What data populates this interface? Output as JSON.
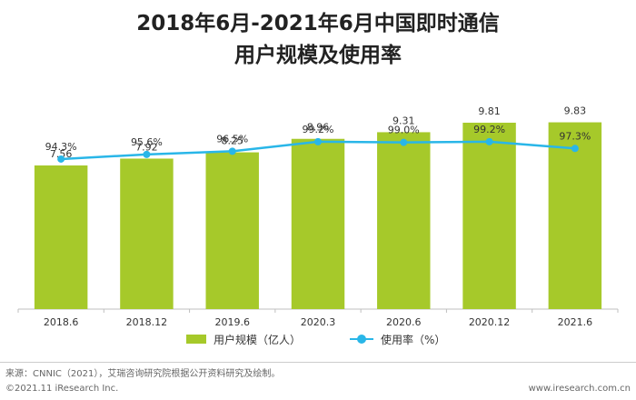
{
  "title_line1": "2018年6月-2021年6月中国即时通信",
  "title_line2": "用户规模及使用率",
  "chart_data": {
    "type": "bar",
    "categories": [
      "2018.6",
      "2018.12",
      "2019.6",
      "2020.3",
      "2020.6",
      "2020.12",
      "2021.6"
    ],
    "series": [
      {
        "name": "用户规模（亿人）",
        "type": "bar",
        "values": [
          7.56,
          7.92,
          8.25,
          8.96,
          9.31,
          9.81,
          9.83
        ],
        "labels": [
          "7.56",
          "7.92",
          "8.25",
          "8.96",
          "9.31",
          "9.81",
          "9.83"
        ],
        "color": "#a6c92a"
      },
      {
        "name": "使用率（%）",
        "type": "line",
        "values": [
          94.3,
          95.6,
          96.5,
          99.2,
          99.0,
          99.2,
          97.3
        ],
        "labels": [
          "94.3%",
          "95.6%",
          "96.5%",
          "99.2%",
          "99.0%",
          "99.2%",
          "97.3%"
        ],
        "color": "#29b6e8"
      }
    ],
    "bar_ylim": [
      0,
      16.5
    ],
    "line_ylim": [
      75,
      102
    ],
    "legend_position": "bottom",
    "grid": false
  },
  "source": "来源：CNNIC（2021），艾瑞咨询研究院根据公开资料研究及绘制。",
  "copyright": "©2021.11 iResearch Inc.",
  "website": "www.iresearch.com.cn"
}
